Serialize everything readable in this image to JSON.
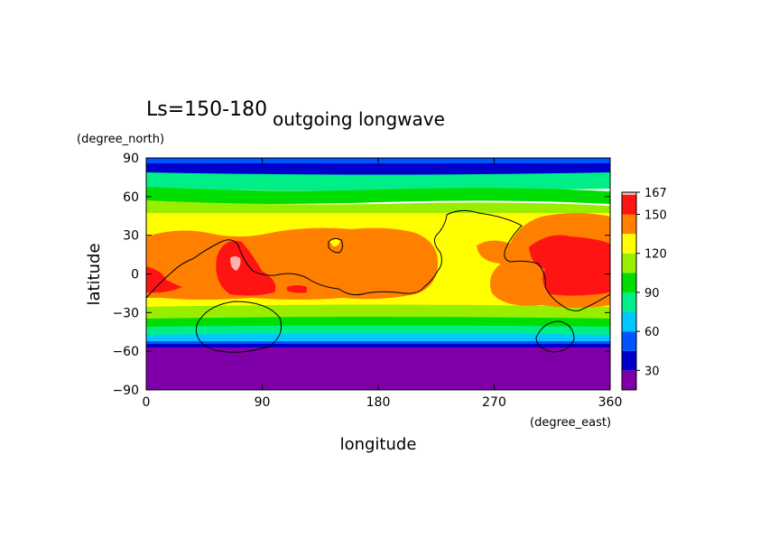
{
  "header": {
    "ls_label": "Ls=150-180",
    "title": "outgoing longwave"
  },
  "chart_data": {
    "type": "heatmap",
    "title": "outgoing longwave",
    "subtitle": "Ls=150-180",
    "xlabel": "longitude",
    "ylabel": "latitude",
    "xunit": "(degree_east)",
    "yunit": "(degree_north)",
    "xlim": [
      0,
      360
    ],
    "ylim": [
      -90,
      90
    ],
    "xticks": [
      0,
      90,
      180,
      270,
      360
    ],
    "yticks": [
      90,
      60,
      30,
      0,
      -30,
      -60,
      -90
    ],
    "xtick_labels": [
      "0",
      "90",
      "180",
      "270",
      "360"
    ],
    "ytick_labels": [
      "90",
      "60",
      "30",
      "0",
      "−30",
      "−60",
      "−90"
    ],
    "colorbar": {
      "levels": [
        15,
        30,
        45,
        60,
        75,
        90,
        105,
        120,
        135,
        150,
        165,
        167
      ],
      "colors": [
        "#7f00a8",
        "#0000cc",
        "#0055ff",
        "#00c8ff",
        "#00ee88",
        "#00dd00",
        "#99ee00",
        "#ffff00",
        "#ff7f00",
        "#ff1414",
        "#ffb0b0"
      ],
      "tick_values": [
        30,
        60,
        90,
        120,
        150,
        167
      ],
      "tick_labels": [
        "30",
        "60",
        "90",
        "120",
        "150",
        "167"
      ]
    }
  }
}
